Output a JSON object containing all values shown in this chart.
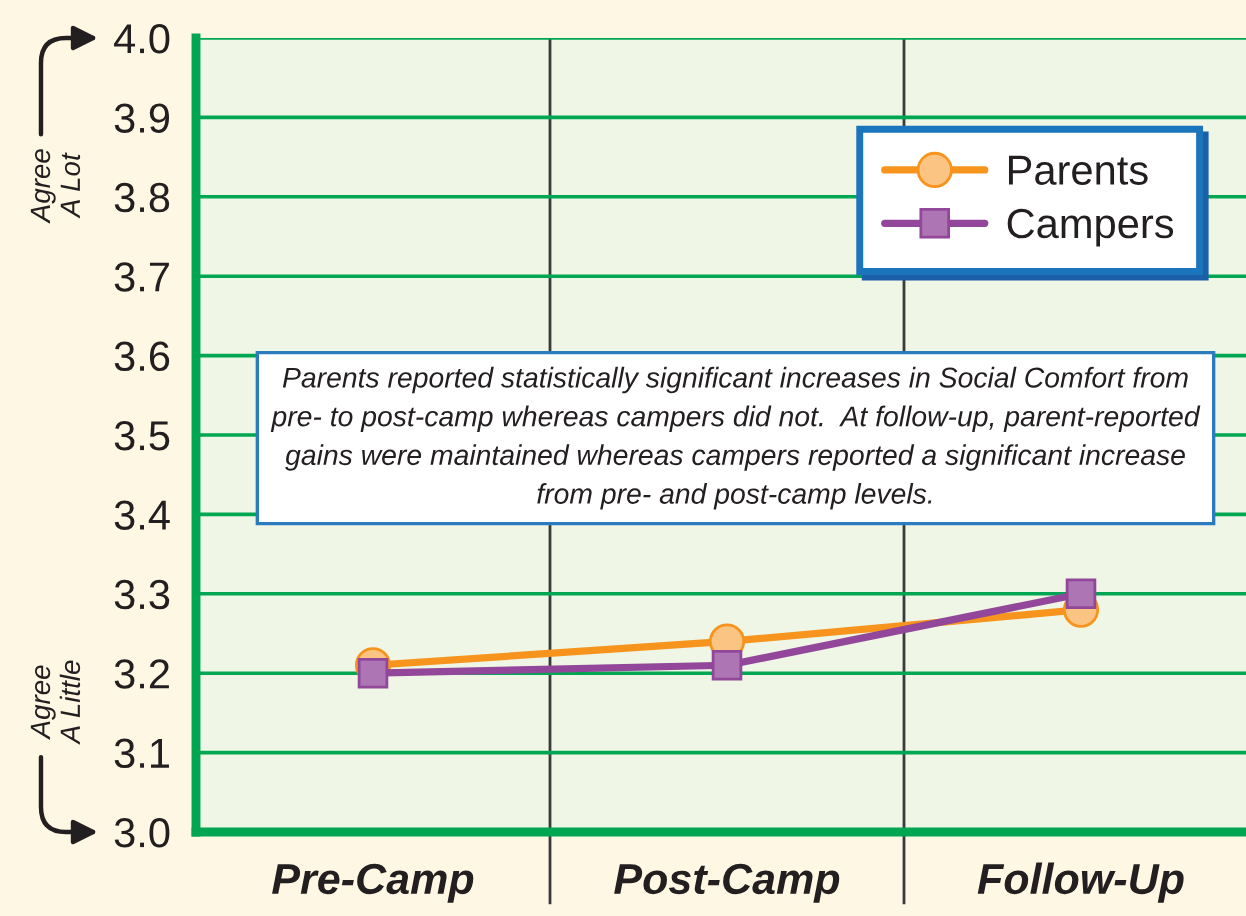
{
  "chart_data": {
    "type": "line",
    "categories": [
      "Pre-Camp",
      "Post-Camp",
      "Follow-Up"
    ],
    "series": [
      {
        "name": "Parents",
        "color": "#f7941d",
        "marker": "circle",
        "values": [
          3.21,
          3.24,
          3.28
        ]
      },
      {
        "name": "Campers",
        "color": "#92479a",
        "marker": "square",
        "values": [
          3.2,
          3.21,
          3.3
        ]
      }
    ],
    "ylim": [
      3.0,
      4.0
    ],
    "yticks": [
      {
        "value": 3,
        "label": "3.0"
      },
      3.1,
      3.2,
      3.3,
      3.4,
      3.5,
      3.6,
      3.7,
      3.8,
      3.9,
      {
        "value": 4,
        "label": "4.0"
      }
    ],
    "grid": true,
    "legend": "top right",
    "line_style": "solid",
    "annotations": [
      "Agree\nA Lot",
      "Agree\nA Little",
      "Parents reported statistically significant increases in Social Comfort from\npre- to post-camp whereas campers did not.  At follow-up, parent-reported\ngains were maintained whereas campers reported a significant increase\nfrom pre- and post-camp levels."
    ]
  }
}
